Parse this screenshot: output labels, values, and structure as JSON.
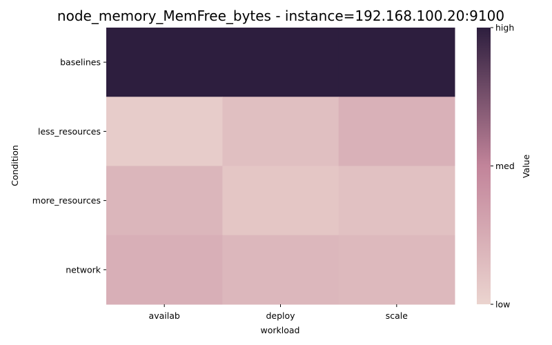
{
  "chart_data": {
    "type": "heatmap",
    "title": "node_memory_MemFree_bytes - instance=192.168.100.20:9100",
    "xlabel": "workload",
    "ylabel": "Condition",
    "x_categories": [
      "availab",
      "deploy",
      "scale"
    ],
    "y_categories": [
      "baselines",
      "less_resources",
      "more_resources",
      "network"
    ],
    "values": [
      [
        1.0,
        1.0,
        1.0
      ],
      [
        0.05,
        0.13,
        0.22
      ],
      [
        0.19,
        0.09,
        0.12
      ],
      [
        0.23,
        0.18,
        0.17
      ]
    ],
    "colorbar": {
      "label": "Value",
      "ticks": [
        {
          "value": 1.0,
          "label": "high"
        },
        {
          "value": 0.5,
          "label": "med"
        },
        {
          "value": 0.0,
          "label": "low"
        }
      ],
      "colors": [
        "#ebd4cf",
        "#c2849a",
        "#2d1e3e"
      ]
    },
    "grid": false,
    "legend": "colorbar-right"
  }
}
